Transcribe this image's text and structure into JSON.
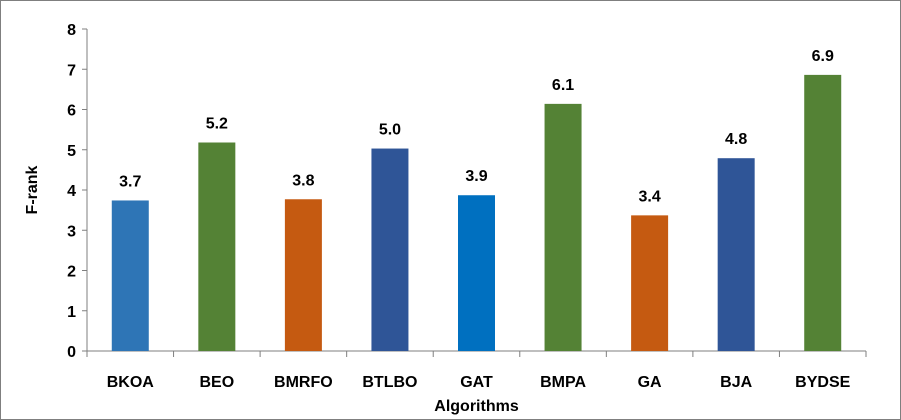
{
  "chart_data": {
    "type": "bar",
    "title": "",
    "xlabel": "Algorithms",
    "ylabel": "F-rank",
    "ylim": [
      0,
      8
    ],
    "yticks": [
      0,
      1,
      2,
      3,
      4,
      5,
      6,
      7,
      8
    ],
    "grid": false,
    "legend": "none",
    "categories": [
      "BKOA",
      "BEO",
      "BMRFO",
      "BTLBO",
      "GAT",
      "BMPA",
      "GA",
      "BJA",
      "BYDSE"
    ],
    "values": [
      3.74,
      5.18,
      3.77,
      5.03,
      3.87,
      6.14,
      3.37,
      4.79,
      6.86
    ],
    "data_labels": [
      "3.7",
      "5.2",
      "3.8",
      "5.0",
      "3.9",
      "6.1",
      "3.4",
      "4.8",
      "6.9"
    ],
    "bar_colors": [
      "#2e75b6",
      "#548235",
      "#c55a11",
      "#2f5597",
      "#0070c0",
      "#548235",
      "#c55a11",
      "#2f5597",
      "#548235"
    ]
  }
}
